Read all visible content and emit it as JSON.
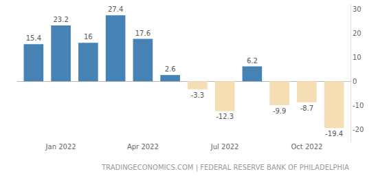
{
  "chart_data": {
    "type": "bar",
    "categories": [
      null,
      "Jan 2022",
      null,
      null,
      "Apr 2022",
      null,
      null,
      "Jul 2022",
      null,
      null,
      "Oct 2022",
      null
    ],
    "values": [
      15.4,
      23.2,
      16,
      27.4,
      17.6,
      2.6,
      -3.3,
      -12.3,
      6.2,
      -9.9,
      -8.7,
      -19.4
    ],
    "colors": [
      "#4682b4",
      "#4682b4",
      "#4682b4",
      "#4682b4",
      "#4682b4",
      "#4682b4",
      "#f5deb3",
      "#f5deb3",
      "#4682b4",
      "#f5deb3",
      "#f5deb3",
      "#f5deb3"
    ],
    "ylim": [
      -25,
      32
    ],
    "yticks": [
      -20,
      -10,
      0,
      10,
      20,
      30
    ],
    "grid": false,
    "data_labels": true,
    "annotations": [
      "TRADINGECONOMICS.COM | FEDERAL RESERVE BANK OF PHILADELPHIA"
    ]
  }
}
